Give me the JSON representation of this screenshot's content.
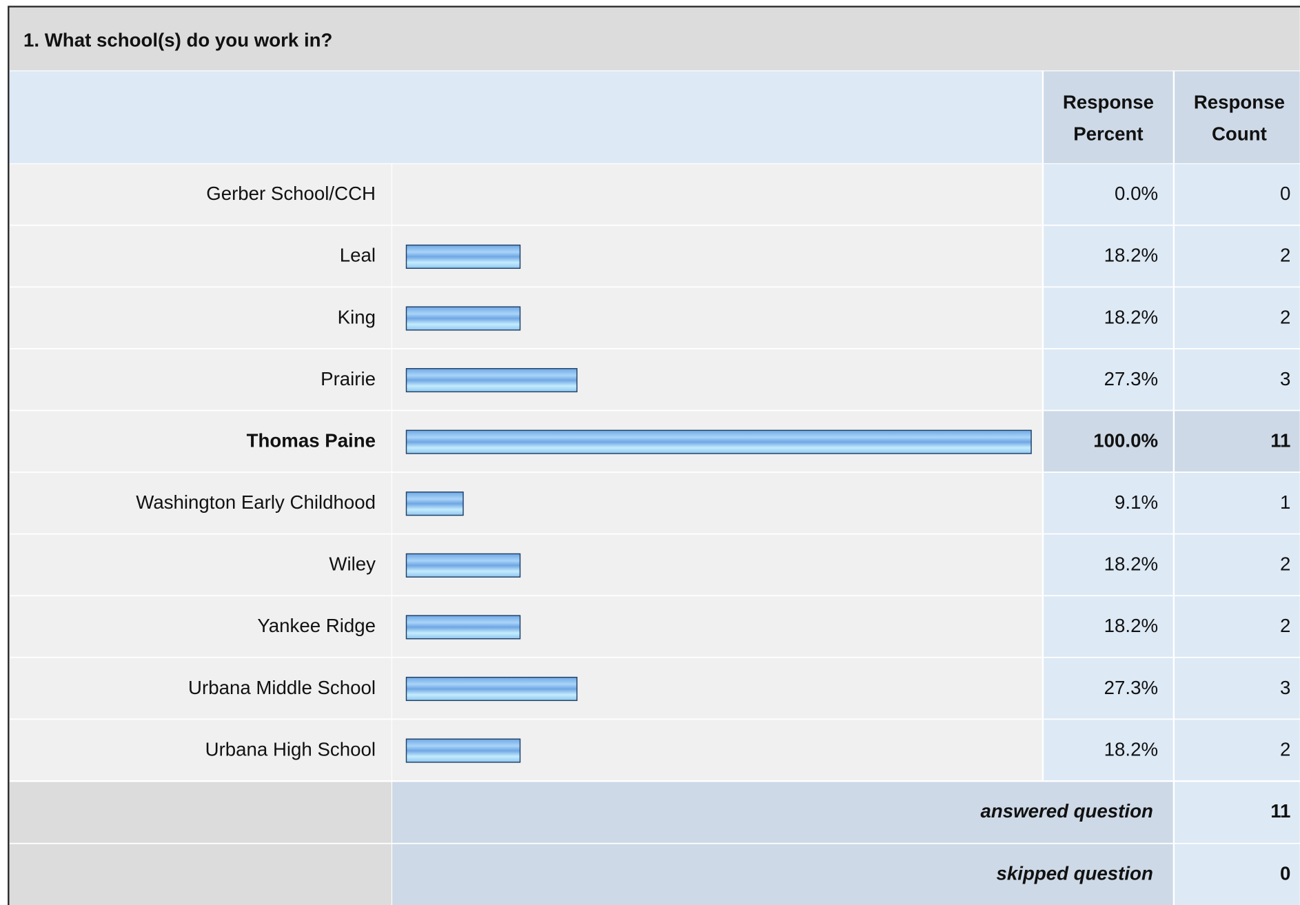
{
  "chart_data": {
    "type": "bar",
    "title": "1. What school(s) do you work in?",
    "columns": [
      [
        "Response",
        "Percent"
      ],
      [
        "Response",
        "Count"
      ]
    ],
    "categories": [
      "Gerber School/CCH",
      "Leal",
      "King",
      "Prairie",
      "Thomas Paine",
      "Washington Early Childhood",
      "Wiley",
      "Yankee Ridge",
      "Urbana Middle School",
      "Urbana High School"
    ],
    "values": [
      0,
      18.2,
      18.2,
      27.3,
      100,
      9.1,
      18.2,
      18.2,
      27.3,
      18.2
    ],
    "value_labels": [
      "0.0%",
      "18.2%",
      "18.2%",
      "27.3%",
      "100.0%",
      "9.1%",
      "18.2%",
      "18.2%",
      "27.3%",
      "18.2%"
    ],
    "counts": [
      0,
      2,
      2,
      3,
      11,
      1,
      2,
      2,
      3,
      2
    ],
    "xlim": [
      0,
      100
    ],
    "color": "#8cc4f2",
    "highlight": "Thomas Paine",
    "summary": [
      {
        "label": "answered question",
        "value": 11
      },
      {
        "label": "skipped question",
        "value": 0
      }
    ]
  }
}
